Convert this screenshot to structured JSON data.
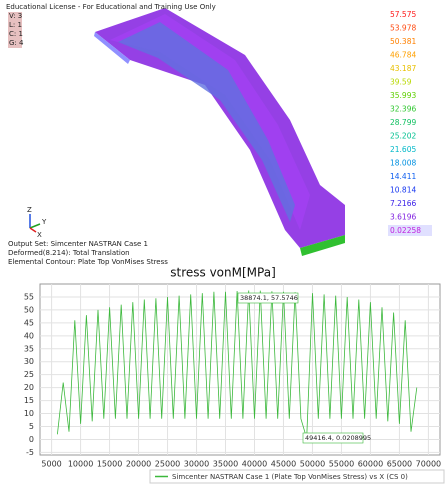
{
  "view": {
    "license": "Educational License - For Educational and Training Use Only",
    "view_info": [
      "V: 3",
      "L: 1",
      "C: 1",
      "G: 4"
    ],
    "axis_labels": [
      "Z",
      "Y",
      "X"
    ],
    "output_info": [
      "Output Set: Simcenter NASTRAN Case 1",
      "Deformed(8.214): Total Translation",
      "Elemental Contour: Plate Top VonMises Stress"
    ],
    "colorbar": {
      "labels": [
        57.575,
        53.978,
        50.381,
        46.784,
        43.187,
        39.59,
        35.993,
        32.396,
        28.799,
        25.202,
        21.605,
        18.008,
        14.411,
        10.814,
        7.2166,
        3.6196,
        0.02258
      ],
      "colors": [
        "#ff1a1a",
        "#ff4a10",
        "#ff8000",
        "#ffa000",
        "#e8c000",
        "#b8d800",
        "#5ed000",
        "#30c830",
        "#10c060",
        "#00c090",
        "#00b8c8",
        "#0090e0",
        "#1060f0",
        "#1838f0",
        "#3a20e8",
        "#8020e0",
        "#c020e0"
      ]
    }
  },
  "chart_data": {
    "type": "line",
    "title": "stress vonM[MPa]",
    "x": [
      6000,
      7000,
      8000,
      9000,
      10000,
      11000,
      12000,
      13000,
      14000,
      15000,
      16000,
      17000,
      18000,
      19000,
      20000,
      21000,
      22000,
      23000,
      24000,
      25000,
      26000,
      27000,
      28000,
      29000,
      30000,
      31000,
      32000,
      33000,
      34000,
      35000,
      36000,
      37000,
      38000,
      39000,
      40000,
      41000,
      42000,
      43000,
      44000,
      45000,
      46000,
      47000,
      48000,
      49000,
      50000,
      51000,
      52000,
      53000,
      54000,
      55000,
      56000,
      57000,
      58000,
      59000,
      60000,
      61000,
      62000,
      63000,
      64000,
      65000,
      66000,
      67000,
      68000
    ],
    "series": [
      {
        "name": "Simcenter NASTRAN Case 1 (Plate Top VonMises Stress) vs X (CS 0)",
        "color": "#3cb83c",
        "values": [
          2,
          22,
          3,
          46,
          6,
          48,
          7,
          50,
          8,
          51,
          8,
          52,
          8,
          53,
          8,
          54,
          8,
          54.5,
          8,
          55,
          8,
          55.5,
          8,
          56,
          8,
          56.5,
          8,
          57,
          8,
          57,
          8,
          57.3,
          8,
          57.5,
          8,
          57.4,
          8,
          57.2,
          8,
          57,
          8,
          56.8,
          8,
          0.5,
          56.5,
          8,
          56,
          8,
          55.5,
          8,
          55,
          8,
          54,
          8,
          53,
          8,
          51,
          7,
          49,
          6,
          46,
          3,
          20
        ]
      }
    ],
    "xlim": [
      3000,
      72000
    ],
    "ylim": [
      -6,
      60
    ],
    "xticks": [
      5000,
      10000,
      15000,
      20000,
      25000,
      30000,
      35000,
      40000,
      45000,
      50000,
      55000,
      60000,
      65000,
      70000
    ],
    "yticks": [
      -5,
      0,
      5,
      10,
      15,
      20,
      25,
      30,
      35,
      40,
      45,
      50,
      55
    ],
    "grid": true,
    "annotations": [
      "38874.1, 57.5746",
      "49416.4, 0.0208995"
    ]
  }
}
